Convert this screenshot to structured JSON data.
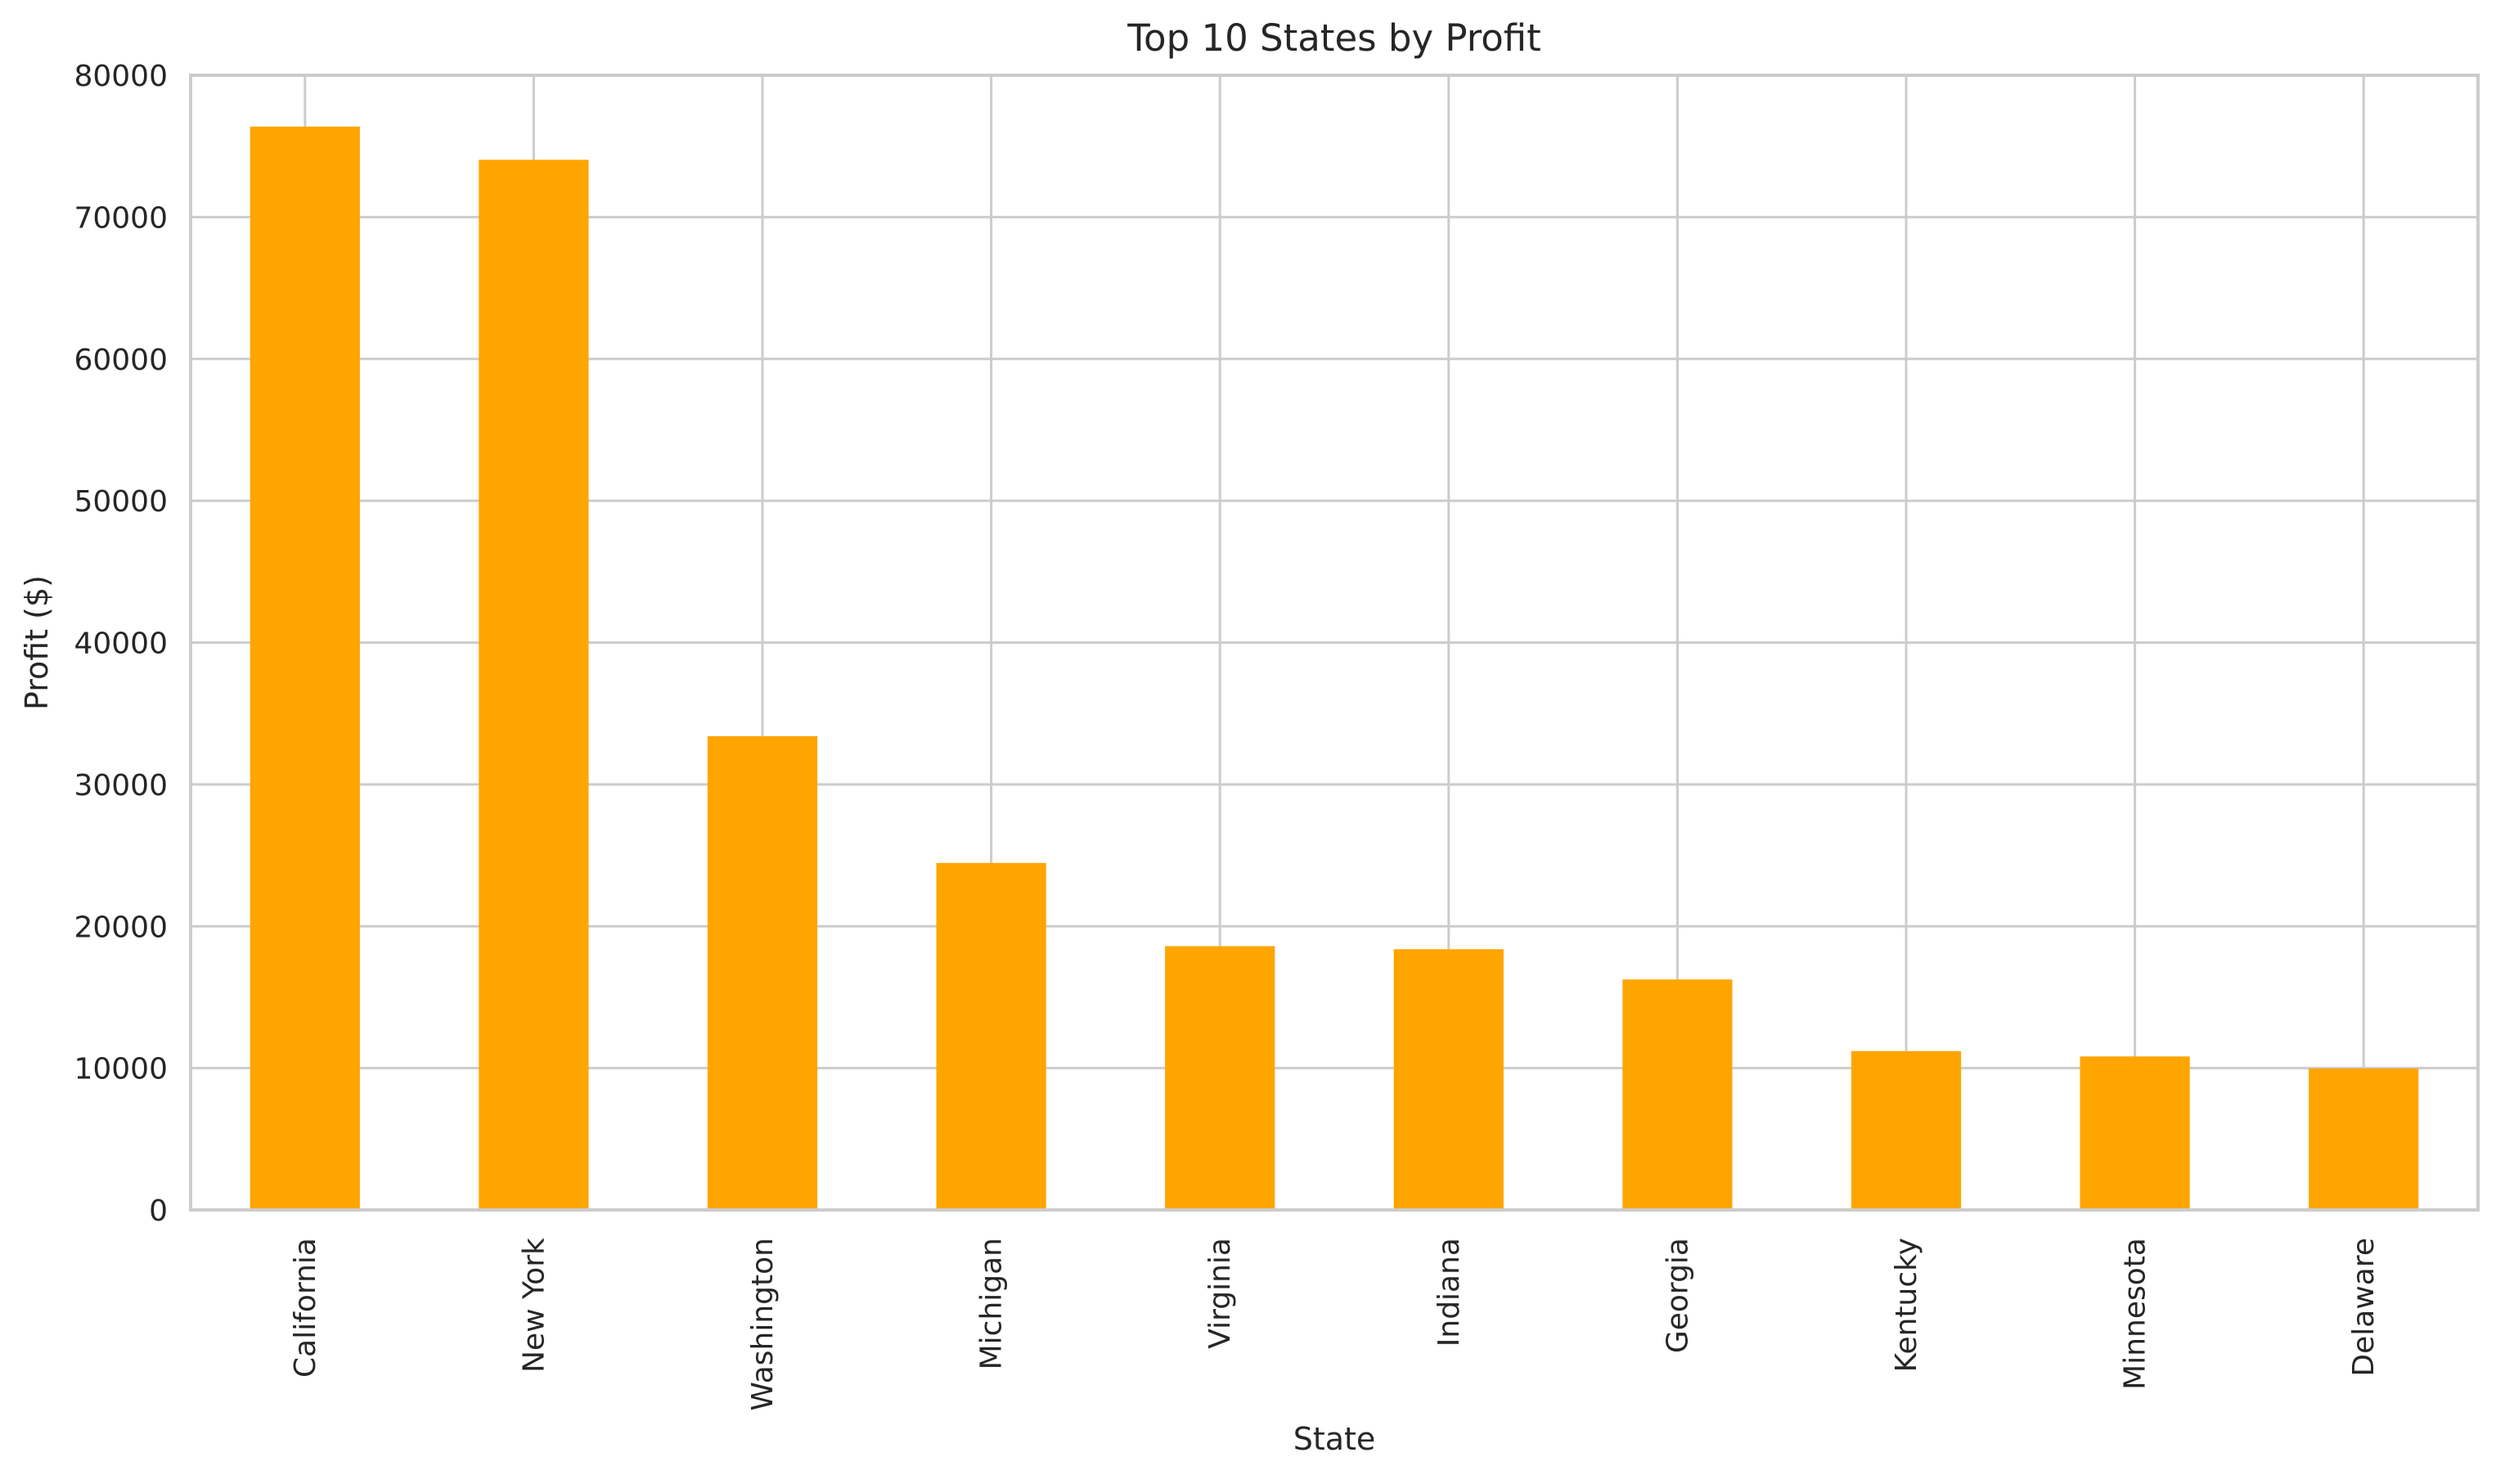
{
  "chart_data": {
    "type": "bar",
    "title": "Top 10 States by Profit",
    "xlabel": "State",
    "ylabel": "Profit ($)",
    "categories": [
      "California",
      "New York",
      "Washington",
      "Michigan",
      "Virginia",
      "Indiana",
      "Georgia",
      "Kentucky",
      "Minnesota",
      "Delaware"
    ],
    "values": [
      76381,
      74039,
      33403,
      24463,
      18598,
      18383,
      16250,
      11200,
      10823,
      9977
    ],
    "ylim": [
      0,
      80000
    ],
    "yticks": [
      0,
      10000,
      20000,
      30000,
      40000,
      50000,
      60000,
      70000,
      80000
    ],
    "grid": true,
    "bar_color": "#FFA500",
    "grid_color": "#CCCCCC",
    "background": "#FFFFFF"
  }
}
